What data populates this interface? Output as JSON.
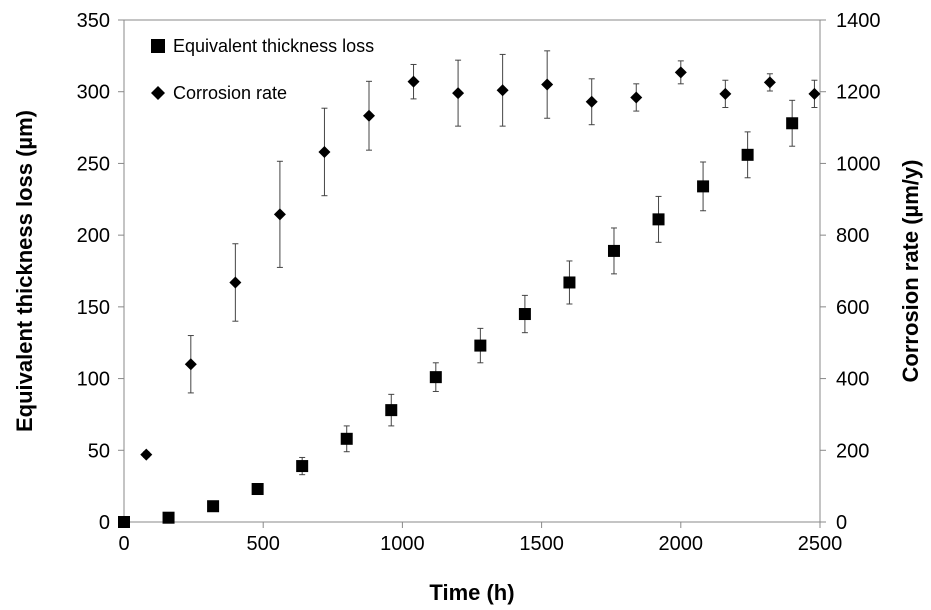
{
  "chart_data": {
    "type": "scatter",
    "xlabel": "Time (h)",
    "ylabel": "Equivalent thickness loss (µm)",
    "y2label": "Corrosion rate (µm/y)",
    "xlim": [
      0,
      2500
    ],
    "ylim": [
      0,
      350
    ],
    "y2lim": [
      0,
      1400
    ],
    "x_ticks": [
      "0",
      "500",
      "1000",
      "1500",
      "2000",
      "2500"
    ],
    "y_ticks": [
      "0",
      "50",
      "100",
      "150",
      "200",
      "250",
      "300",
      "350"
    ],
    "y2_ticks": [
      "0",
      "200",
      "400",
      "600",
      "800",
      "1000",
      "1200",
      "1400"
    ],
    "grid": false,
    "legend_position": "top-left",
    "series": [
      {
        "name": "Equivalent thickness loss",
        "axis": "left",
        "marker": "square",
        "color": "#000000",
        "points": [
          {
            "x": 0,
            "y": 0,
            "err": 0
          },
          {
            "x": 160,
            "y": 3,
            "err": 0
          },
          {
            "x": 320,
            "y": 11,
            "err": 0
          },
          {
            "x": 480,
            "y": 23,
            "err": 0
          },
          {
            "x": 640,
            "y": 39,
            "err": 6
          },
          {
            "x": 800,
            "y": 58,
            "err": 9
          },
          {
            "x": 960,
            "y": 78,
            "err": 11
          },
          {
            "x": 1120,
            "y": 101,
            "err": 10
          },
          {
            "x": 1280,
            "y": 123,
            "err": 12
          },
          {
            "x": 1440,
            "y": 145,
            "err": 13
          },
          {
            "x": 1600,
            "y": 167,
            "err": 15
          },
          {
            "x": 1760,
            "y": 189,
            "err": 16
          },
          {
            "x": 1920,
            "y": 211,
            "err": 16
          },
          {
            "x": 2080,
            "y": 234,
            "err": 17
          },
          {
            "x": 2240,
            "y": 256,
            "err": 16
          },
          {
            "x": 2400,
            "y": 278,
            "err": 16
          }
        ]
      },
      {
        "name": "Corrosion rate",
        "axis": "right",
        "marker": "diamond",
        "color": "#000000",
        "points": [
          {
            "x": 80,
            "y": 188,
            "err": 8
          },
          {
            "x": 240,
            "y": 440,
            "err": 80
          },
          {
            "x": 400,
            "y": 668,
            "err": 108
          },
          {
            "x": 560,
            "y": 858,
            "err": 148
          },
          {
            "x": 720,
            "y": 1032,
            "err": 122
          },
          {
            "x": 880,
            "y": 1133,
            "err": 96
          },
          {
            "x": 1040,
            "y": 1228,
            "err": 48
          },
          {
            "x": 1200,
            "y": 1196,
            "err": 92
          },
          {
            "x": 1360,
            "y": 1204,
            "err": 100
          },
          {
            "x": 1520,
            "y": 1220,
            "err": 94
          },
          {
            "x": 1680,
            "y": 1172,
            "err": 64
          },
          {
            "x": 1840,
            "y": 1184,
            "err": 38
          },
          {
            "x": 2000,
            "y": 1254,
            "err": 32
          },
          {
            "x": 2160,
            "y": 1194,
            "err": 38
          },
          {
            "x": 2320,
            "y": 1226,
            "err": 24
          },
          {
            "x": 2480,
            "y": 1194,
            "err": 38
          }
        ]
      }
    ]
  }
}
